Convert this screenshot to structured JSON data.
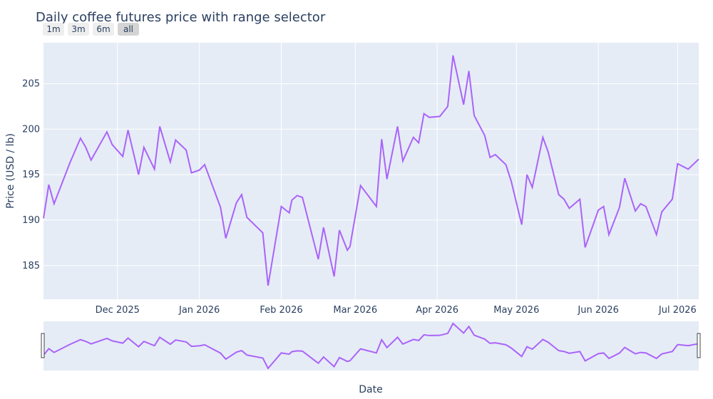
{
  "chart_data": {
    "type": "line",
    "title": "Daily coffee futures price with range selector",
    "xlabel": "Date",
    "ylabel": "Price (USD / lb)",
    "yticks": [
      185,
      190,
      195,
      200,
      205
    ],
    "ylim": [
      181.3,
      209.5
    ],
    "xlim": [
      "2025-11-03",
      "2026-07-09"
    ],
    "xticks": [
      {
        "date": "2025-12-01",
        "label": "Dec 2025"
      },
      {
        "date": "2026-01-01",
        "label": "Jan 2026"
      },
      {
        "date": "2026-02-01",
        "label": "Feb 2026"
      },
      {
        "date": "2026-03-01",
        "label": "Mar 2026"
      },
      {
        "date": "2026-04-01",
        "label": "Apr 2026"
      },
      {
        "date": "2026-05-01",
        "label": "May 2026"
      },
      {
        "date": "2026-06-01",
        "label": "Jun 2026"
      },
      {
        "date": "2026-07-01",
        "label": "Jul 2026"
      }
    ],
    "grid": true,
    "line_color": "#ab63fa",
    "range_selector_buttons": [
      "1m",
      "3m",
      "6m",
      "all"
    ],
    "active_button": "all",
    "rangeslider": true,
    "series": [
      {
        "x": [
          "2025-11-03",
          "2025-11-05",
          "2025-11-07",
          "2025-11-13",
          "2025-11-17",
          "2025-11-19",
          "2025-11-21",
          "2025-11-27",
          "2025-11-29",
          "2025-12-03",
          "2025-12-05",
          "2025-12-09",
          "2025-12-11",
          "2025-12-15",
          "2025-12-17",
          "2025-12-21",
          "2025-12-23",
          "2025-12-27",
          "2025-12-29",
          "2026-01-01",
          "2026-01-03",
          "2026-01-09",
          "2026-01-11",
          "2026-01-15",
          "2026-01-17",
          "2026-01-19",
          "2026-01-25",
          "2026-01-27",
          "2026-02-01",
          "2026-02-04",
          "2026-02-05",
          "2026-02-07",
          "2026-02-09",
          "2026-02-15",
          "2026-02-17",
          "2026-02-21",
          "2026-02-23",
          "2026-02-26",
          "2026-02-27",
          "2026-03-03",
          "2026-03-09",
          "2026-03-11",
          "2026-03-13",
          "2026-03-17",
          "2026-03-19",
          "2026-03-23",
          "2026-03-25",
          "2026-03-27",
          "2026-03-29",
          "2026-04-02",
          "2026-04-05",
          "2026-04-07",
          "2026-04-11",
          "2026-04-13",
          "2026-04-15",
          "2026-04-19",
          "2026-04-21",
          "2026-04-23",
          "2026-04-27",
          "2026-04-29",
          "2026-05-03",
          "2026-05-05",
          "2026-05-07",
          "2026-05-11",
          "2026-05-13",
          "2026-05-17",
          "2026-05-19",
          "2026-05-21",
          "2026-05-25",
          "2026-05-27",
          "2026-06-01",
          "2026-06-03",
          "2026-06-05",
          "2026-06-09",
          "2026-06-11",
          "2026-06-15",
          "2026-06-17",
          "2026-06-19",
          "2026-06-23",
          "2026-06-25",
          "2026-06-29",
          "2026-07-01",
          "2026-07-05",
          "2026-07-09"
        ],
        "y": [
          190.2,
          193.9,
          191.8,
          196.3,
          199.0,
          198.0,
          196.6,
          199.7,
          198.3,
          197.0,
          199.9,
          195.0,
          198.0,
          195.6,
          200.3,
          196.4,
          198.8,
          197.7,
          195.2,
          195.5,
          196.1,
          191.4,
          188.0,
          191.9,
          192.8,
          190.3,
          188.6,
          182.8,
          191.5,
          190.8,
          192.2,
          192.7,
          192.5,
          185.7,
          189.2,
          183.8,
          188.9,
          186.7,
          187.1,
          193.8,
          191.5,
          198.9,
          194.5,
          200.3,
          196.5,
          199.1,
          198.5,
          201.7,
          201.3,
          201.4,
          202.5,
          208.1,
          202.7,
          206.4,
          201.5,
          199.3,
          196.9,
          197.2,
          196.1,
          194.3,
          189.5,
          195.0,
          193.6,
          199.1,
          197.5,
          192.8,
          192.3,
          191.3,
          192.3,
          187.0,
          191.1,
          191.5,
          188.4,
          191.4,
          194.6,
          191.0,
          191.8,
          191.5,
          188.4,
          190.9,
          192.3,
          196.2,
          195.6,
          196.7
        ]
      }
    ]
  }
}
